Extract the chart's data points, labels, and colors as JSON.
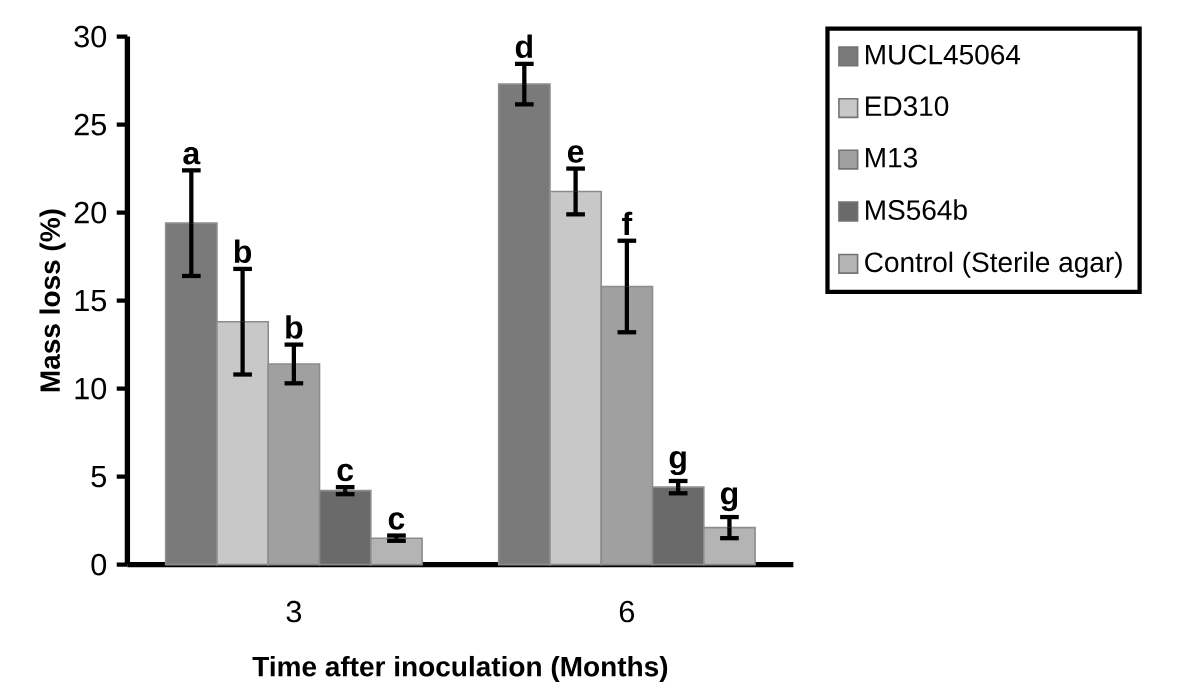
{
  "chart_data": {
    "type": "bar",
    "xlabel": "Time after inoculation (Months)",
    "ylabel": "Mass loss (%)",
    "categories": [
      "3",
      "6"
    ],
    "series": [
      {
        "name": "MUCL45064",
        "color": "#7a7a7a",
        "values": [
          19.4,
          27.3
        ],
        "errors": [
          3.0,
          1.15
        ]
      },
      {
        "name": "ED310",
        "color": "#c8c8c8",
        "values": [
          13.8,
          21.2
        ],
        "errors": [
          3.0,
          1.3
        ]
      },
      {
        "name": "M13",
        "color": "#a0a0a0",
        "values": [
          11.4,
          15.8
        ],
        "errors": [
          1.1,
          2.6
        ]
      },
      {
        "name": "MS564b",
        "color": "#6a6a6a",
        "values": [
          4.2,
          4.4
        ],
        "errors": [
          0.2,
          0.35
        ]
      },
      {
        "name": "Control (Sterile agar)",
        "color": "#b4b4b4",
        "values": [
          1.5,
          2.1
        ],
        "errors": [
          0.15,
          0.6
        ]
      }
    ],
    "ylim": [
      0,
      30
    ],
    "yticks": [
      0,
      5,
      10,
      15,
      20,
      25,
      30
    ],
    "grid": false,
    "legend": "right",
    "annotations": [
      "a",
      "b",
      "b",
      "c",
      "c",
      "d",
      "e",
      "f",
      "g",
      "g"
    ]
  }
}
